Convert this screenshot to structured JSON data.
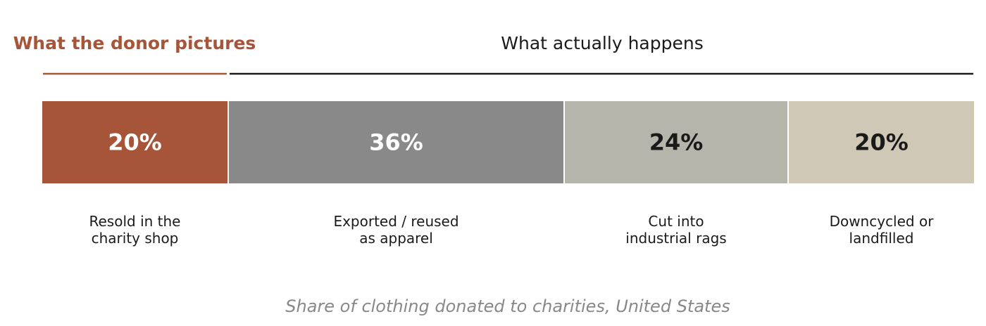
{
  "chart_data": {
    "type": "bar",
    "orientation": "horizontal-stacked",
    "unit": "%",
    "caption": "Share of clothing donated to charities, United States",
    "groups": [
      {
        "title": "What the donor pictures",
        "color": "#a65539",
        "bold": true,
        "segments": [
          0
        ]
      },
      {
        "title": "What actually happens",
        "color": "#1a1a1a",
        "bold": false,
        "segments": [
          1,
          2,
          3
        ]
      }
    ],
    "segments": [
      {
        "label": "20%",
        "value": 20,
        "category": [
          "Resold in the",
          "charity shop"
        ],
        "color": "#a65539",
        "text_color": "#ffffff"
      },
      {
        "label": "36%",
        "value": 36,
        "category": [
          "Exported / reused",
          "as apparel"
        ],
        "color": "#898989",
        "text_color": "#ffffff"
      },
      {
        "label": "24%",
        "value": 24,
        "category": [
          "Cut into",
          "industrial rags"
        ],
        "color": "#b5b5ac",
        "text_color": "#1a1a1a"
      },
      {
        "label": "20%",
        "value": 20,
        "category": [
          "Downcycled or",
          "landfilled"
        ],
        "color": "#cfc8b6",
        "text_color": "#1a1a1a"
      }
    ]
  }
}
